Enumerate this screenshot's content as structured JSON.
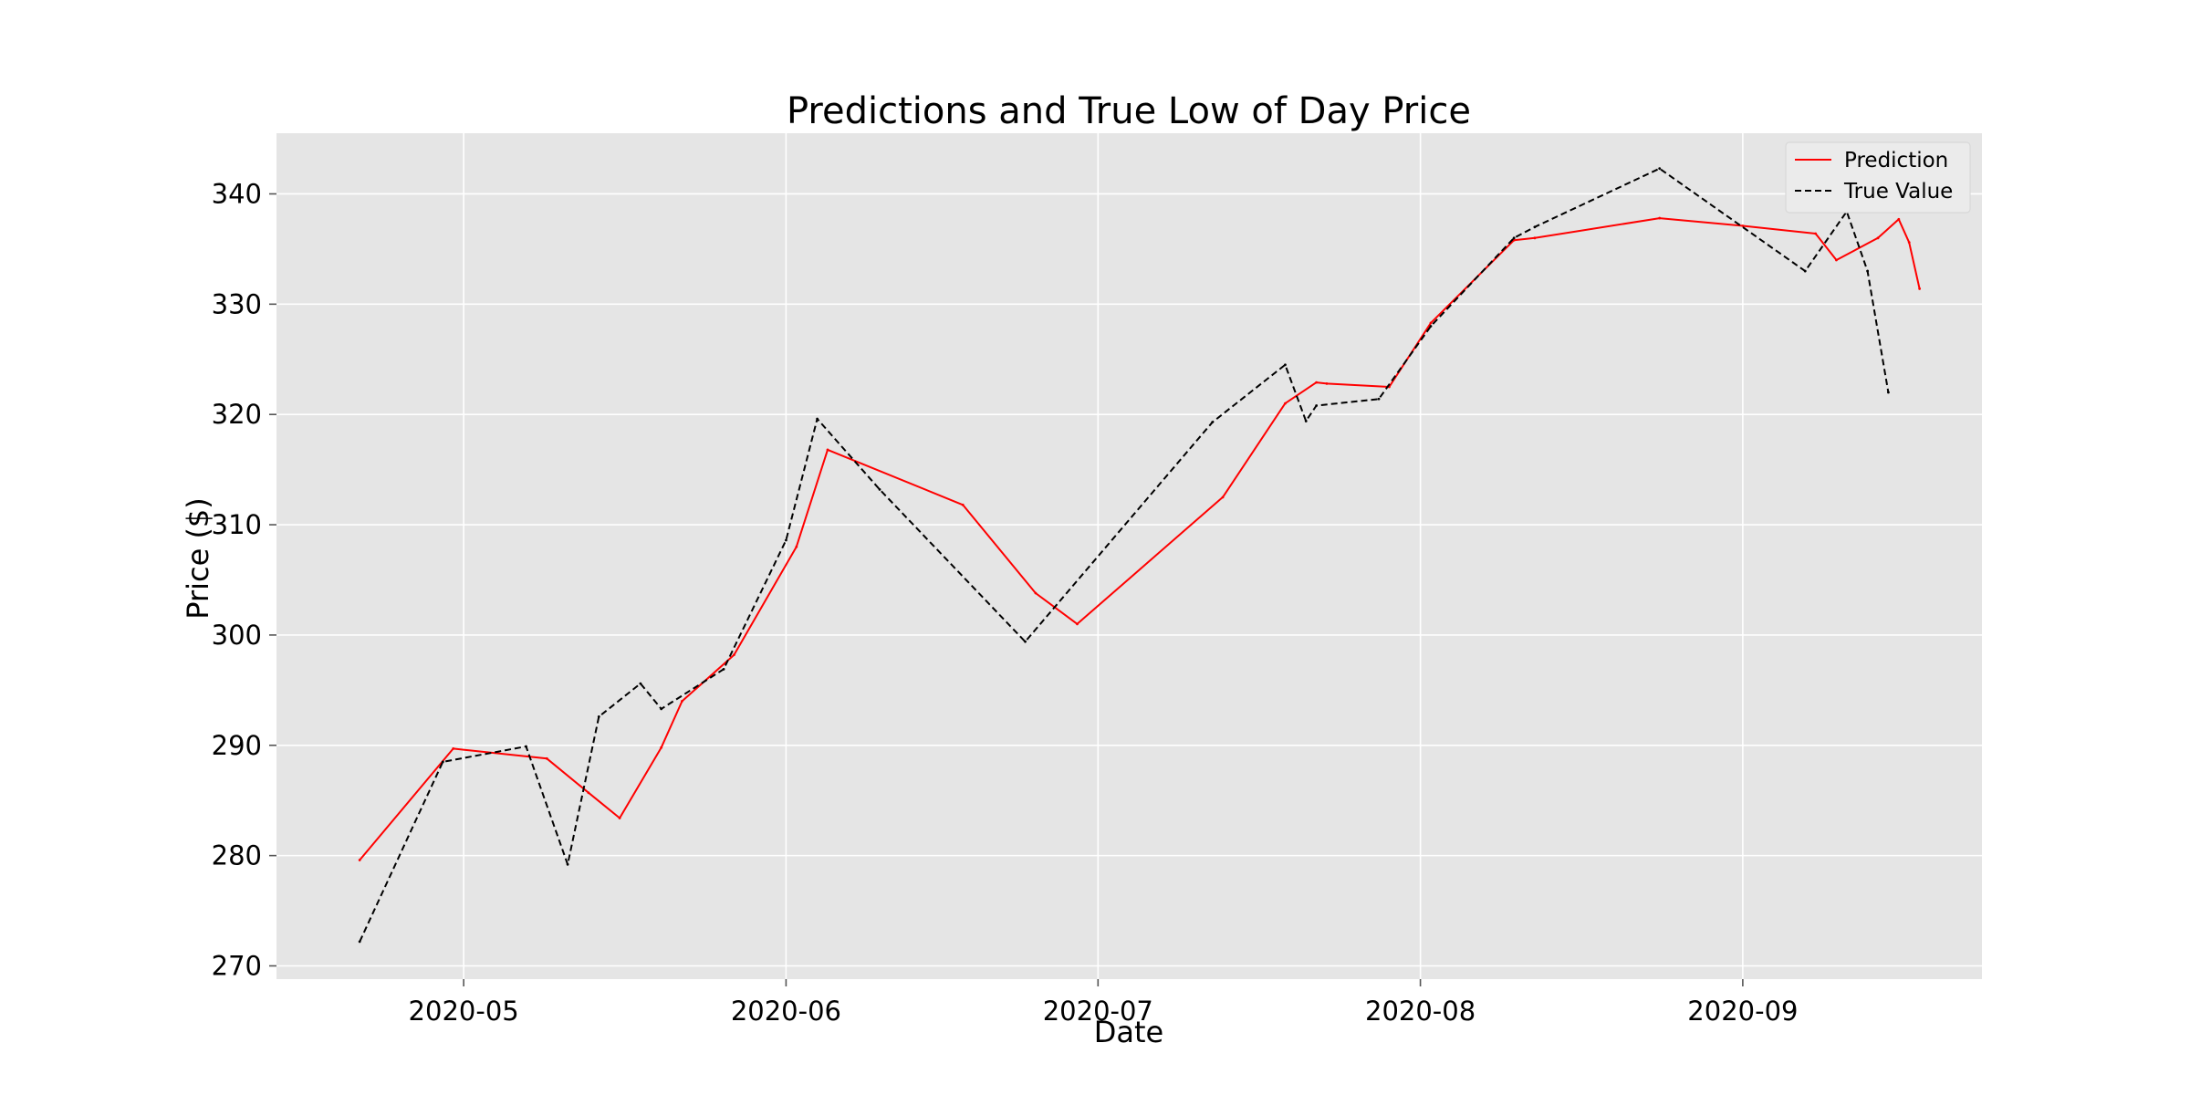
{
  "chart_data": {
    "type": "line",
    "title": "Predictions and True Low of Day Price",
    "xlabel": "Date",
    "ylabel": "Price ($)",
    "x_ticks": [
      "2020-05",
      "2020-06",
      "2020-07",
      "2020-08",
      "2020-09"
    ],
    "y_ticks": [
      "270",
      "280",
      "290",
      "300",
      "310",
      "320",
      "330",
      "340"
    ],
    "xlim": [
      "2020-04-13",
      "2020-09-24"
    ],
    "ylim": [
      268.8,
      345.5
    ],
    "grid": true,
    "legend_position": "top-right",
    "series": [
      {
        "name": "Prediction",
        "color": "#ff0000",
        "style": "solid",
        "points": [
          [
            "2020-04-21",
            279.6
          ],
          [
            "2020-04-30",
            289.7
          ],
          [
            "2020-05-09",
            288.8
          ],
          [
            "2020-05-13",
            285.7
          ],
          [
            "2020-05-16",
            283.4
          ],
          [
            "2020-05-20",
            289.8
          ],
          [
            "2020-05-22",
            294.0
          ],
          [
            "2020-05-27",
            298.2
          ],
          [
            "2020-06-02",
            308.0
          ],
          [
            "2020-06-05",
            316.8
          ],
          [
            "2020-06-18",
            311.8
          ],
          [
            "2020-06-25",
            303.8
          ],
          [
            "2020-06-29",
            301.0
          ],
          [
            "2020-07-13",
            312.5
          ],
          [
            "2020-07-19",
            321.0
          ],
          [
            "2020-07-22",
            322.9
          ],
          [
            "2020-07-23",
            322.8
          ],
          [
            "2020-07-29",
            322.5
          ],
          [
            "2020-08-02",
            328.3
          ],
          [
            "2020-08-10",
            335.8
          ],
          [
            "2020-08-12",
            336.0
          ],
          [
            "2020-08-24",
            337.8
          ],
          [
            "2020-09-01",
            337.1
          ],
          [
            "2020-09-08",
            336.4
          ],
          [
            "2020-09-10",
            334.0
          ],
          [
            "2020-09-14",
            336.0
          ],
          [
            "2020-09-16",
            337.7
          ],
          [
            "2020-09-17",
            335.6
          ],
          [
            "2020-09-18",
            331.4
          ]
        ]
      },
      {
        "name": "True Value",
        "color": "#000000",
        "style": "dashed",
        "points": [
          [
            "2020-04-21",
            272.2
          ],
          [
            "2020-04-29",
            288.5
          ],
          [
            "2020-05-07",
            289.9
          ],
          [
            "2020-05-11",
            279.2
          ],
          [
            "2020-05-14",
            292.6
          ],
          [
            "2020-05-18",
            295.6
          ],
          [
            "2020-05-20",
            293.3
          ],
          [
            "2020-05-26",
            296.9
          ],
          [
            "2020-06-01",
            308.6
          ],
          [
            "2020-06-04",
            319.6
          ],
          [
            "2020-06-10",
            313.2
          ],
          [
            "2020-06-24",
            299.4
          ],
          [
            "2020-07-12",
            319.3
          ],
          [
            "2020-07-19",
            324.5
          ],
          [
            "2020-07-21",
            319.4
          ],
          [
            "2020-07-22",
            320.8
          ],
          [
            "2020-07-28",
            321.4
          ],
          [
            "2020-08-02",
            328.0
          ],
          [
            "2020-08-10",
            336.0
          ],
          [
            "2020-08-12",
            337.0
          ],
          [
            "2020-08-24",
            342.3
          ],
          [
            "2020-09-07",
            333.0
          ],
          [
            "2020-09-11",
            338.4
          ],
          [
            "2020-09-13",
            333.0
          ],
          [
            "2020-09-15",
            322.0
          ]
        ]
      }
    ]
  }
}
